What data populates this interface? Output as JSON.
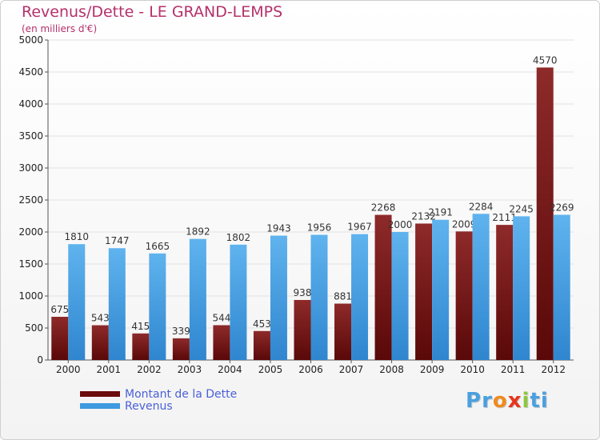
{
  "title": "Revenus/Dette - LE GRAND-LEMPS",
  "subtitle": "(en milliers d'€)",
  "colors": {
    "dette": "#7a1212",
    "revenus": "#4fa3e3",
    "title": "#b5306a",
    "legend_text": "#4a60d8"
  },
  "legend": {
    "items": [
      {
        "label": "Montant de la Dette",
        "color": "#6b0c0c"
      },
      {
        "label": "Revenus",
        "color": "#3f9ae0"
      }
    ]
  },
  "logo": {
    "text": "Proxiti",
    "letter_colors": [
      "#4aa0e0",
      "#4aa0e0",
      "#f08a1c",
      "#e8331c",
      "#8dc63f",
      "#4aa0e0",
      "#4aa0e0"
    ]
  },
  "chart_data": {
    "type": "bar",
    "categories": [
      "2000",
      "2001",
      "2002",
      "2003",
      "2004",
      "2005",
      "2006",
      "2007",
      "2008",
      "2009",
      "2010",
      "2011",
      "2012"
    ],
    "series": [
      {
        "name": "Montant de la Dette",
        "values": [
          675,
          543,
          415,
          339,
          544,
          453,
          938,
          881,
          2268,
          2132,
          2009,
          2111,
          4570
        ]
      },
      {
        "name": "Revenus",
        "values": [
          1810,
          1747,
          1665,
          1892,
          1802,
          1943,
          1956,
          1967,
          2000,
          2191,
          2284,
          2245,
          2269
        ]
      }
    ],
    "ylim": [
      0,
      5000
    ],
    "yticks": [
      0,
      500,
      1000,
      1500,
      2000,
      2500,
      3000,
      3500,
      4000,
      4500,
      5000
    ],
    "grid": true,
    "legend_position": "bottom-left"
  }
}
